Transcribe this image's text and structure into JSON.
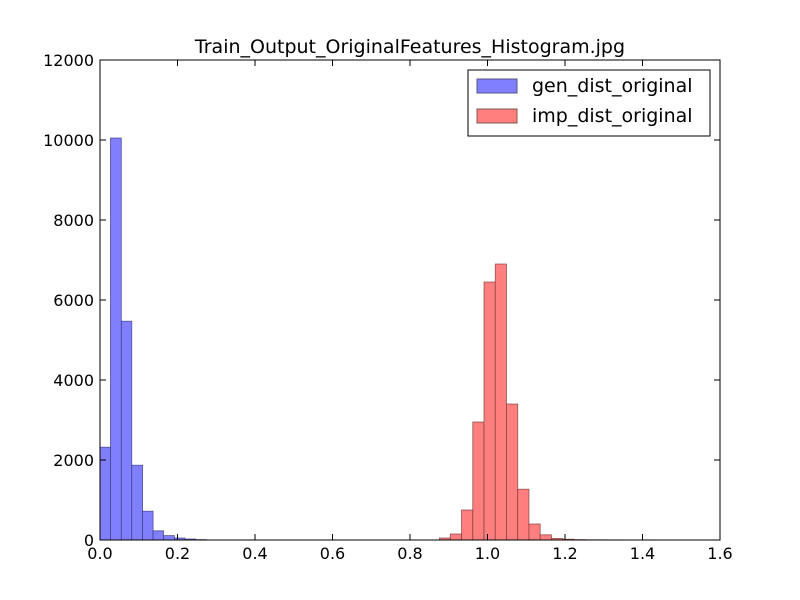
{
  "chart_data": {
    "type": "bar",
    "title": "Train_Output_OriginalFeatures_Histogram.jpg",
    "xlabel": "",
    "ylabel": "",
    "xlim": [
      0.0,
      1.6
    ],
    "ylim": [
      0,
      12000
    ],
    "xticks": [
      "0.0",
      "0.2",
      "0.4",
      "0.6",
      "0.8",
      "1.0",
      "1.2",
      "1.4",
      "1.6"
    ],
    "yticks": [
      "0",
      "2000",
      "4000",
      "6000",
      "8000",
      "10000",
      "12000"
    ],
    "legend_position": "top-right",
    "grid": false,
    "series": [
      {
        "name": "gen_dist_original",
        "color": "#7f7fff",
        "bins": [
          {
            "x0": 0.0,
            "x1": 0.027,
            "count": 2320
          },
          {
            "x0": 0.027,
            "x1": 0.055,
            "count": 10050
          },
          {
            "x0": 0.055,
            "x1": 0.082,
            "count": 5470
          },
          {
            "x0": 0.082,
            "x1": 0.11,
            "count": 1870
          },
          {
            "x0": 0.11,
            "x1": 0.137,
            "count": 720
          },
          {
            "x0": 0.137,
            "x1": 0.164,
            "count": 230
          },
          {
            "x0": 0.164,
            "x1": 0.192,
            "count": 110
          },
          {
            "x0": 0.192,
            "x1": 0.219,
            "count": 50
          },
          {
            "x0": 0.219,
            "x1": 0.247,
            "count": 25
          },
          {
            "x0": 0.247,
            "x1": 0.274,
            "count": 10
          }
        ]
      },
      {
        "name": "imp_dist_original",
        "color": "#ff7f7f",
        "bins": [
          {
            "x0": 0.876,
            "x1": 0.904,
            "count": 50
          },
          {
            "x0": 0.904,
            "x1": 0.933,
            "count": 150
          },
          {
            "x0": 0.933,
            "x1": 0.962,
            "count": 750
          },
          {
            "x0": 0.962,
            "x1": 0.991,
            "count": 2950
          },
          {
            "x0": 0.991,
            "x1": 1.02,
            "count": 6450
          },
          {
            "x0": 1.02,
            "x1": 1.049,
            "count": 6900
          },
          {
            "x0": 1.049,
            "x1": 1.078,
            "count": 3400
          },
          {
            "x0": 1.078,
            "x1": 1.107,
            "count": 1270
          },
          {
            "x0": 1.107,
            "x1": 1.136,
            "count": 400
          },
          {
            "x0": 1.136,
            "x1": 1.165,
            "count": 130
          },
          {
            "x0": 1.165,
            "x1": 1.194,
            "count": 40
          },
          {
            "x0": 1.194,
            "x1": 1.223,
            "count": 20
          },
          {
            "x0": 1.223,
            "x1": 1.252,
            "count": 10
          },
          {
            "x0": 1.252,
            "x1": 1.281,
            "count": 5
          },
          {
            "x0": 1.281,
            "x1": 1.31,
            "count": 5
          },
          {
            "x0": 1.31,
            "x1": 1.339,
            "count": 3
          },
          {
            "x0": 1.339,
            "x1": 1.368,
            "count": 2
          },
          {
            "x0": 1.368,
            "x1": 1.397,
            "count": 2
          },
          {
            "x0": 1.397,
            "x1": 1.426,
            "count": 3
          },
          {
            "x0": 1.426,
            "x1": 1.455,
            "count": 2
          }
        ]
      }
    ]
  }
}
